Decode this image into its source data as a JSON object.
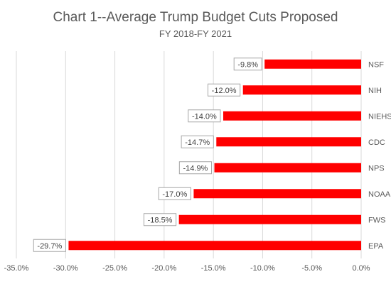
{
  "chart_data": {
    "type": "bar",
    "orientation": "horizontal",
    "title": "Chart 1--Average Trump Budget Cuts Proposed",
    "subtitle": "FY 2018-FY 2021",
    "categories": [
      "NSF",
      "NIH",
      "NIEHS",
      "CDC",
      "NPS",
      "NOAA",
      "FWS",
      "EPA"
    ],
    "values": [
      -9.8,
      -12.0,
      -14.0,
      -14.7,
      -14.9,
      -17.0,
      -18.5,
      -29.7
    ],
    "data_labels": [
      "-9.8%",
      "-12.0%",
      "-14.0%",
      "-14.7%",
      "-14.9%",
      "-17.0%",
      "-18.5%",
      "-29.7%"
    ],
    "xlim": [
      -35,
      0
    ],
    "x_ticks": [
      -35,
      -30,
      -25,
      -20,
      -15,
      -10,
      -5,
      0
    ],
    "x_tick_labels": [
      "-35.0%",
      "-30.0%",
      "-25.0%",
      "-20.0%",
      "-15.0%",
      "-10.0%",
      "-5.0%",
      "0.0%"
    ],
    "xlabel": "",
    "ylabel": "",
    "grid": true,
    "legend": "none",
    "colors": {
      "bar": "#ff0000",
      "grid": "#d9d9d9",
      "text": "#595959",
      "label_border": "#a6a6a6"
    }
  }
}
